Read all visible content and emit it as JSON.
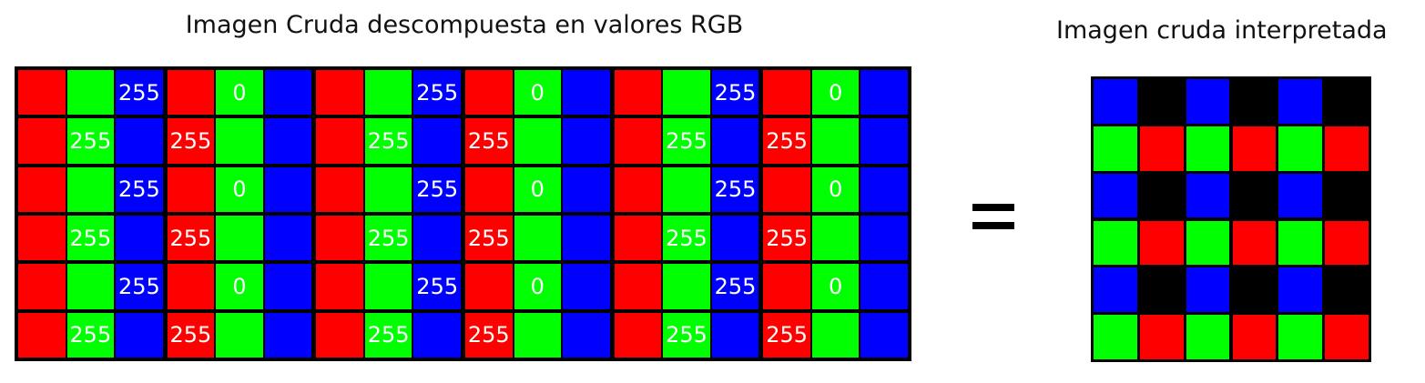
{
  "titles": {
    "left": "Imagen Cruda descompuesta en valores RGB",
    "right": "Imagen cruda interpretada"
  },
  "colors": {
    "red": "#ff0000",
    "green": "#00ff00",
    "blue": "#0000ff",
    "black": "#000000",
    "text": "#ffffff"
  },
  "raw_pattern": [
    [
      {
        "c": "red",
        "t": ""
      },
      {
        "c": "green",
        "t": ""
      },
      {
        "c": "blue",
        "t": "255"
      },
      {
        "c": "red",
        "t": ""
      },
      {
        "c": "green",
        "t": "0"
      },
      {
        "c": "blue",
        "t": ""
      }
    ],
    [
      {
        "c": "red",
        "t": ""
      },
      {
        "c": "green",
        "t": "255"
      },
      {
        "c": "blue",
        "t": ""
      },
      {
        "c": "red",
        "t": "255"
      },
      {
        "c": "green",
        "t": ""
      },
      {
        "c": "blue",
        "t": ""
      }
    ]
  ],
  "raw_grid": {
    "rows": 6,
    "cols": 18
  },
  "equals_sign": "=",
  "interpreted_pattern": [
    [
      "blue",
      "black",
      "blue",
      "black",
      "blue",
      "black"
    ],
    [
      "green",
      "red",
      "green",
      "red",
      "green",
      "red"
    ]
  ],
  "interpreted_grid": {
    "rows": 6,
    "cols": 6
  }
}
